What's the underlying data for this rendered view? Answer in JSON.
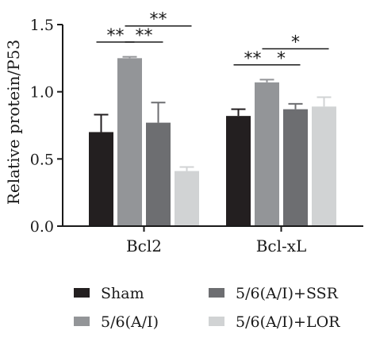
{
  "chart_data": {
    "type": "bar",
    "title": "",
    "xlabel": "",
    "ylabel": "Relative protein/P53",
    "ylim": [
      0,
      1.5
    ],
    "yticks": [
      "0.0",
      "0.5",
      "1.0",
      "1.5"
    ],
    "grid": false,
    "legend_position": "bottom",
    "categories": [
      "Bcl2",
      "Bcl-xL"
    ],
    "series": [
      {
        "name": "Sham",
        "color": "#231f20",
        "values": [
          0.7,
          0.82
        ],
        "errors": [
          0.13,
          0.05
        ]
      },
      {
        "name": "5/6(A/I)",
        "color": "#939598",
        "values": [
          1.25,
          1.07
        ],
        "errors": [
          0.01,
          0.02
        ]
      },
      {
        "name": "5/6(A/I)+SSR",
        "color": "#6d6e71",
        "values": [
          0.77,
          0.87
        ],
        "errors": [
          0.15,
          0.04
        ]
      },
      {
        "name": "5/6(A/I)+LOR",
        "color": "#d1d3d4",
        "values": [
          0.41,
          0.89
        ],
        "errors": [
          0.03,
          0.07
        ]
      }
    ],
    "significance": [
      {
        "category": 0,
        "from": 0,
        "to": 1,
        "label": "**",
        "y": 1.37
      },
      {
        "category": 0,
        "from": 1,
        "to": 2,
        "label": "**",
        "y": 1.37
      },
      {
        "category": 0,
        "from": 1,
        "to": 3,
        "label": "**",
        "y": 1.49
      },
      {
        "category": 1,
        "from": 0,
        "to": 1,
        "label": "**",
        "y": 1.2
      },
      {
        "category": 1,
        "from": 1,
        "to": 2,
        "label": "*",
        "y": 1.2
      },
      {
        "category": 1,
        "from": 1,
        "to": 3,
        "label": "*",
        "y": 1.32
      }
    ]
  }
}
